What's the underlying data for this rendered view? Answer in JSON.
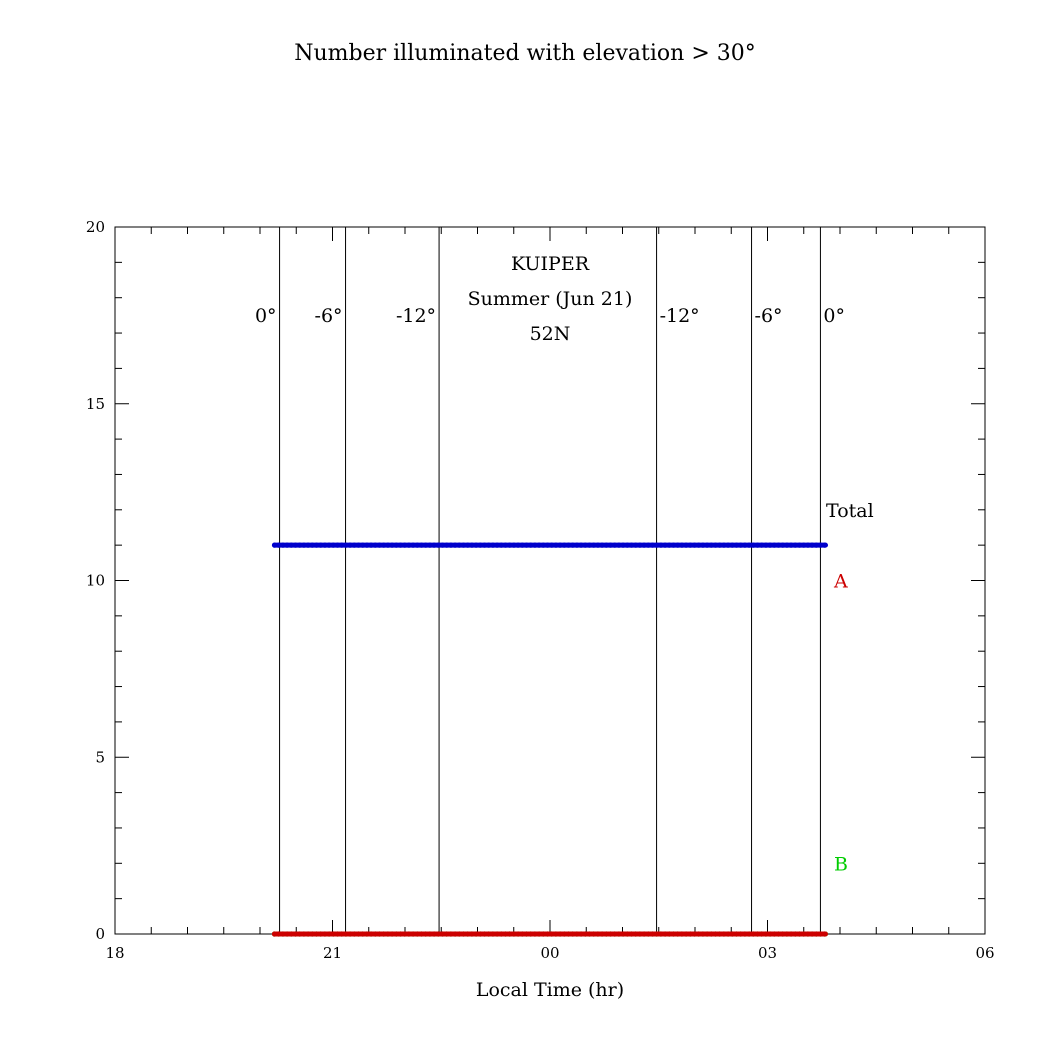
{
  "chart_data": {
    "type": "line",
    "title": "Number illuminated with elevation > 30°",
    "xlabel": "Local Time (hr)",
    "ylabel": "",
    "xlim": [
      18,
      30
    ],
    "ylim": [
      0,
      20
    ],
    "x_ticks": [
      {
        "value": 18,
        "label": "18"
      },
      {
        "value": 21,
        "label": "21"
      },
      {
        "value": 24,
        "label": "00"
      },
      {
        "value": 27,
        "label": "03"
      },
      {
        "value": 30,
        "label": "06"
      }
    ],
    "y_ticks": [
      {
        "value": 0,
        "label": "0"
      },
      {
        "value": 5,
        "label": "5"
      },
      {
        "value": 10,
        "label": "10"
      },
      {
        "value": 15,
        "label": "15"
      },
      {
        "value": 20,
        "label": "20"
      }
    ],
    "annotation_lines": [
      "KUIPER",
      "Summer (Jun 21)",
      "52N"
    ],
    "twilight_lines": [
      {
        "x": 20.27,
        "label": "0°"
      },
      {
        "x": 21.18,
        "label": "-6°"
      },
      {
        "x": 22.47,
        "label": "-12°"
      },
      {
        "x": 25.47,
        "label": "-12°"
      },
      {
        "x": 26.78,
        "label": "-6°"
      },
      {
        "x": 27.73,
        "label": "0°"
      }
    ],
    "series": [
      {
        "name": "Total",
        "color": "#0000cc",
        "x": [
          20.2,
          27.8
        ],
        "y": [
          11,
          11
        ]
      },
      {
        "name": "A",
        "color": "#cc0000",
        "x": [
          20.2,
          27.8
        ],
        "y": [
          0,
          0
        ]
      },
      {
        "name": "B",
        "color": "#00ee00",
        "x": [
          20.2,
          27.8
        ],
        "y": [
          0,
          0
        ]
      }
    ],
    "legend_entries": [
      {
        "label": "Total",
        "color": "#000000",
        "y": 12
      },
      {
        "label": "A",
        "color": "#cc0000",
        "y": 10
      },
      {
        "label": "B",
        "color": "#00cc00",
        "y": 2
      }
    ],
    "grid": false
  }
}
